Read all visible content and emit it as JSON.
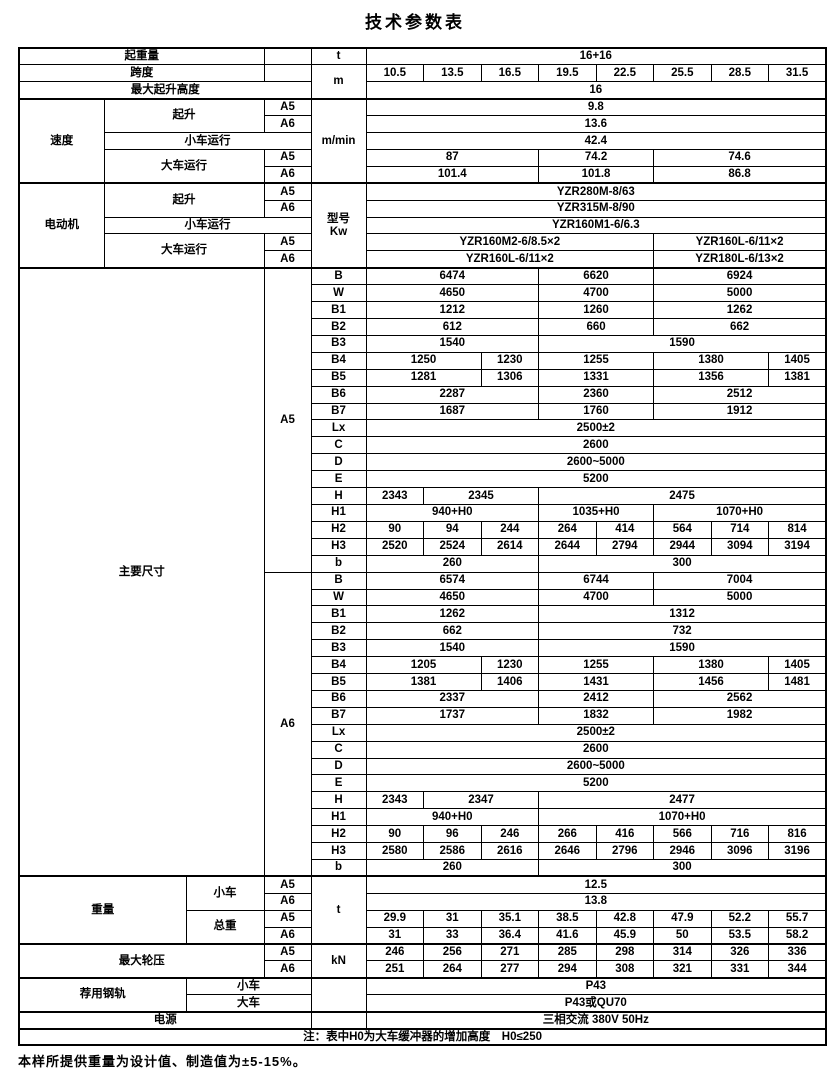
{
  "title": "技术参数表",
  "footer": "本样所提供重量为设计值、制造值为±5-15%。",
  "table": {
    "rows": [
      [
        {
          "t": "起重量",
          "c": 3,
          "n": "row-label-lifting-capacity"
        },
        {
          "t": ""
        },
        {
          "t": "t",
          "n": "unit-cell"
        },
        {
          "t": "16+16",
          "c": 8
        }
      ],
      [
        {
          "t": "跨度",
          "c": 3,
          "n": "row-label-span"
        },
        {
          "t": ""
        },
        {
          "t": "m",
          "r": 2,
          "n": "unit-cell"
        },
        {
          "t": "10.5"
        },
        {
          "t": "13.5"
        },
        {
          "t": "16.5"
        },
        {
          "t": "19.5"
        },
        {
          "t": "22.5"
        },
        {
          "t": "25.5"
        },
        {
          "t": "28.5"
        },
        {
          "t": "31.5"
        }
      ],
      [
        {
          "t": "最大起升高度",
          "c": 4,
          "n": "row-label-max-lifting-height"
        },
        {
          "t": "16",
          "c": 8
        }
      ],
      [
        {
          "t": "速度",
          "r": 5,
          "n": "section-label-speed"
        },
        {
          "t": "起升",
          "c": 2,
          "r": 2
        },
        {
          "t": "A5"
        },
        {
          "t": "m/min",
          "r": 5,
          "n": "unit-cell"
        },
        {
          "t": "9.8",
          "c": 8
        }
      ],
      [
        {
          "t": "A6"
        },
        {
          "t": "13.6",
          "c": 8
        }
      ],
      [
        {
          "t": "小车运行",
          "c": 3
        },
        {
          "t": "42.4",
          "c": 8
        }
      ],
      [
        {
          "t": "大车运行",
          "c": 2,
          "r": 2
        },
        {
          "t": "A5"
        },
        {
          "t": "87",
          "c": 3
        },
        {
          "t": "74.2",
          "c": 2
        },
        {
          "t": "74.6",
          "c": 3
        }
      ],
      [
        {
          "t": "A6"
        },
        {
          "t": "101.4",
          "c": 3
        },
        {
          "t": "101.8",
          "c": 2
        },
        {
          "t": "86.8",
          "c": 3
        }
      ],
      [
        {
          "t": "电动机",
          "r": 5,
          "n": "section-label-motor"
        },
        {
          "t": "起升",
          "c": 2,
          "r": 2
        },
        {
          "t": "A5"
        },
        {
          "t": "型号\nKw",
          "r": 5,
          "n": "unit-cell"
        },
        {
          "t": "YZR280M-8/63",
          "c": 8
        }
      ],
      [
        {
          "t": "A6"
        },
        {
          "t": "YZR315M-8/90",
          "c": 8
        }
      ],
      [
        {
          "t": "小车运行",
          "c": 3
        },
        {
          "t": "YZR160M1-6/6.3",
          "c": 8
        }
      ],
      [
        {
          "t": "大车运行",
          "c": 2,
          "r": 2
        },
        {
          "t": "A5"
        },
        {
          "t": "YZR160M2-6/8.5×2",
          "c": 5
        },
        {
          "t": "YZR160L-6/11×2",
          "c": 3
        }
      ],
      [
        {
          "t": "A6"
        },
        {
          "t": "YZR160L-6/11×2",
          "c": 5
        },
        {
          "t": "YZR180L-6/13×2",
          "c": 3
        }
      ],
      [
        {
          "t": "主要尺寸",
          "c": 3,
          "r": 36,
          "n": "section-label-main-dimensions"
        },
        {
          "t": "A5",
          "r": 18,
          "n": "group-label-a5"
        },
        {
          "t": "B"
        },
        {
          "t": "6474",
          "c": 3
        },
        {
          "t": "6620",
          "c": 2
        },
        {
          "t": "6924",
          "c": 3
        }
      ],
      [
        {
          "t": "W"
        },
        {
          "t": "4650",
          "c": 3
        },
        {
          "t": "4700",
          "c": 2
        },
        {
          "t": "5000",
          "c": 3
        }
      ],
      [
        {
          "t": "B1"
        },
        {
          "t": "1212",
          "c": 3
        },
        {
          "t": "1260",
          "c": 2
        },
        {
          "t": "1262",
          "c": 3
        }
      ],
      [
        {
          "t": "B2"
        },
        {
          "t": "612",
          "c": 3
        },
        {
          "t": "660",
          "c": 2
        },
        {
          "t": "662",
          "c": 3
        }
      ],
      [
        {
          "t": "B3"
        },
        {
          "t": "1540",
          "c": 3
        },
        {
          "t": "1590",
          "c": 5
        }
      ],
      [
        {
          "t": "B4"
        },
        {
          "t": "1250",
          "c": 2
        },
        {
          "t": "1230"
        },
        {
          "t": "1255",
          "c": 2
        },
        {
          "t": "1380",
          "c": 2
        },
        {
          "t": "1405"
        }
      ],
      [
        {
          "t": "B5"
        },
        {
          "t": "1281",
          "c": 2
        },
        {
          "t": "1306"
        },
        {
          "t": "1331",
          "c": 2
        },
        {
          "t": "1356",
          "c": 2
        },
        {
          "t": "1381"
        }
      ],
      [
        {
          "t": "B6"
        },
        {
          "t": "2287",
          "c": 3
        },
        {
          "t": "2360",
          "c": 2
        },
        {
          "t": "2512",
          "c": 3
        }
      ],
      [
        {
          "t": "B7"
        },
        {
          "t": "1687",
          "c": 3
        },
        {
          "t": "1760",
          "c": 2
        },
        {
          "t": "1912",
          "c": 3
        }
      ],
      [
        {
          "t": "Lx"
        },
        {
          "t": "2500±2",
          "c": 8
        }
      ],
      [
        {
          "t": "C"
        },
        {
          "t": "2600",
          "c": 8
        }
      ],
      [
        {
          "t": "D"
        },
        {
          "t": "2600~5000",
          "c": 8
        }
      ],
      [
        {
          "t": "E"
        },
        {
          "t": "5200",
          "c": 8
        }
      ],
      [
        {
          "t": "H"
        },
        {
          "t": "2343"
        },
        {
          "t": "2345",
          "c": 2
        },
        {
          "t": "2475",
          "c": 5
        }
      ],
      [
        {
          "t": "H1"
        },
        {
          "t": "940+H0",
          "c": 3
        },
        {
          "t": "1035+H0",
          "c": 2
        },
        {
          "t": "1070+H0",
          "c": 3
        }
      ],
      [
        {
          "t": "H2"
        },
        {
          "t": "90"
        },
        {
          "t": "94"
        },
        {
          "t": "244"
        },
        {
          "t": "264"
        },
        {
          "t": "414"
        },
        {
          "t": "564"
        },
        {
          "t": "714"
        },
        {
          "t": "814"
        }
      ],
      [
        {
          "t": "H3"
        },
        {
          "t": "2520"
        },
        {
          "t": "2524"
        },
        {
          "t": "2614"
        },
        {
          "t": "2644"
        },
        {
          "t": "2794"
        },
        {
          "t": "2944"
        },
        {
          "t": "3094"
        },
        {
          "t": "3194"
        }
      ],
      [
        {
          "t": "b"
        },
        {
          "t": "260",
          "c": 3
        },
        {
          "t": "300",
          "c": 5
        }
      ],
      [
        {
          "t": "A6",
          "r": 18,
          "n": "group-label-a6"
        },
        {
          "t": "B"
        },
        {
          "t": "6574",
          "c": 3
        },
        {
          "t": "6744",
          "c": 2
        },
        {
          "t": "7004",
          "c": 3
        }
      ],
      [
        {
          "t": "W"
        },
        {
          "t": "4650",
          "c": 3
        },
        {
          "t": "4700",
          "c": 2
        },
        {
          "t": "5000",
          "c": 3
        }
      ],
      [
        {
          "t": "B1"
        },
        {
          "t": "1262",
          "c": 3
        },
        {
          "t": "1312",
          "c": 5
        }
      ],
      [
        {
          "t": "B2"
        },
        {
          "t": "662",
          "c": 3
        },
        {
          "t": "732",
          "c": 5
        }
      ],
      [
        {
          "t": "B3"
        },
        {
          "t": "1540",
          "c": 3
        },
        {
          "t": "1590",
          "c": 5
        }
      ],
      [
        {
          "t": "B4"
        },
        {
          "t": "1205",
          "c": 2
        },
        {
          "t": "1230"
        },
        {
          "t": "1255",
          "c": 2
        },
        {
          "t": "1380",
          "c": 2
        },
        {
          "t": "1405"
        }
      ],
      [
        {
          "t": "B5"
        },
        {
          "t": "1381",
          "c": 2
        },
        {
          "t": "1406"
        },
        {
          "t": "1431",
          "c": 2
        },
        {
          "t": "1456",
          "c": 2
        },
        {
          "t": "1481"
        }
      ],
      [
        {
          "t": "B6"
        },
        {
          "t": "2337",
          "c": 3
        },
        {
          "t": "2412",
          "c": 2
        },
        {
          "t": "2562",
          "c": 3
        }
      ],
      [
        {
          "t": "B7"
        },
        {
          "t": "1737",
          "c": 3
        },
        {
          "t": "1832",
          "c": 2
        },
        {
          "t": "1982",
          "c": 3
        }
      ],
      [
        {
          "t": "Lx"
        },
        {
          "t": "2500±2",
          "c": 8
        }
      ],
      [
        {
          "t": "C"
        },
        {
          "t": "2600",
          "c": 8
        }
      ],
      [
        {
          "t": "D"
        },
        {
          "t": "2600~5000",
          "c": 8
        }
      ],
      [
        {
          "t": "E"
        },
        {
          "t": "5200",
          "c": 8
        }
      ],
      [
        {
          "t": "H"
        },
        {
          "t": "2343"
        },
        {
          "t": "2347",
          "c": 2
        },
        {
          "t": "2477",
          "c": 5
        }
      ],
      [
        {
          "t": "H1"
        },
        {
          "t": "940+H0",
          "c": 3
        },
        {
          "t": "1070+H0",
          "c": 5
        }
      ],
      [
        {
          "t": "H2"
        },
        {
          "t": "90"
        },
        {
          "t": "96"
        },
        {
          "t": "246"
        },
        {
          "t": "266"
        },
        {
          "t": "416"
        },
        {
          "t": "566"
        },
        {
          "t": "716"
        },
        {
          "t": "816"
        }
      ],
      [
        {
          "t": "H3"
        },
        {
          "t": "2580"
        },
        {
          "t": "2586"
        },
        {
          "t": "2616"
        },
        {
          "t": "2646"
        },
        {
          "t": "2796"
        },
        {
          "t": "2946"
        },
        {
          "t": "3096"
        },
        {
          "t": "3196"
        }
      ],
      [
        {
          "t": "b"
        },
        {
          "t": "260",
          "c": 3
        },
        {
          "t": "300",
          "c": 5
        }
      ],
      [
        {
          "t": "重量",
          "c": 2,
          "r": 4,
          "n": "section-label-weight"
        },
        {
          "t": "小车",
          "r": 2
        },
        {
          "t": "A5"
        },
        {
          "t": "t",
          "r": 4,
          "n": "unit-cell"
        },
        {
          "t": "12.5",
          "c": 8
        }
      ],
      [
        {
          "t": "A6"
        },
        {
          "t": "13.8",
          "c": 8
        }
      ],
      [
        {
          "t": "总重",
          "r": 2
        },
        {
          "t": "A5"
        },
        {
          "t": "29.9"
        },
        {
          "t": "31"
        },
        {
          "t": "35.1"
        },
        {
          "t": "38.5"
        },
        {
          "t": "42.8"
        },
        {
          "t": "47.9"
        },
        {
          "t": "52.2"
        },
        {
          "t": "55.7"
        }
      ],
      [
        {
          "t": "A6"
        },
        {
          "t": "31"
        },
        {
          "t": "33"
        },
        {
          "t": "36.4"
        },
        {
          "t": "41.6"
        },
        {
          "t": "45.9"
        },
        {
          "t": "50"
        },
        {
          "t": "53.5"
        },
        {
          "t": "58.2"
        }
      ],
      [
        {
          "t": "最大轮压",
          "c": 3,
          "r": 2,
          "n": "row-label-max-wheel-load"
        },
        {
          "t": "A5"
        },
        {
          "t": "kN",
          "r": 2,
          "n": "unit-cell"
        },
        {
          "t": "246"
        },
        {
          "t": "256"
        },
        {
          "t": "271"
        },
        {
          "t": "285"
        },
        {
          "t": "298"
        },
        {
          "t": "314"
        },
        {
          "t": "326"
        },
        {
          "t": "336"
        }
      ],
      [
        {
          "t": "A6"
        },
        {
          "t": "251"
        },
        {
          "t": "264"
        },
        {
          "t": "277"
        },
        {
          "t": "294"
        },
        {
          "t": "308"
        },
        {
          "t": "321"
        },
        {
          "t": "331"
        },
        {
          "t": "344"
        }
      ],
      [
        {
          "t": "荐用钢轨",
          "c": 2,
          "r": 2,
          "n": "row-label-recommended-rail"
        },
        {
          "t": "小车",
          "c": 2
        },
        {
          "t": "",
          "r": 2
        },
        {
          "t": "P43",
          "c": 8
        }
      ],
      [
        {
          "t": "大车",
          "c": 2
        },
        {
          "t": "P43或QU70",
          "c": 8
        }
      ],
      [
        {
          "t": "电源",
          "c": 4,
          "n": "row-label-power-supply"
        },
        {
          "t": ""
        },
        {
          "t": "三相交流 380V 50Hz",
          "c": 8
        }
      ],
      [
        {
          "t": "注：表中H0为大车缓冲器的增加高度　H0≤250",
          "c": 13,
          "n": "table-note"
        }
      ]
    ]
  }
}
